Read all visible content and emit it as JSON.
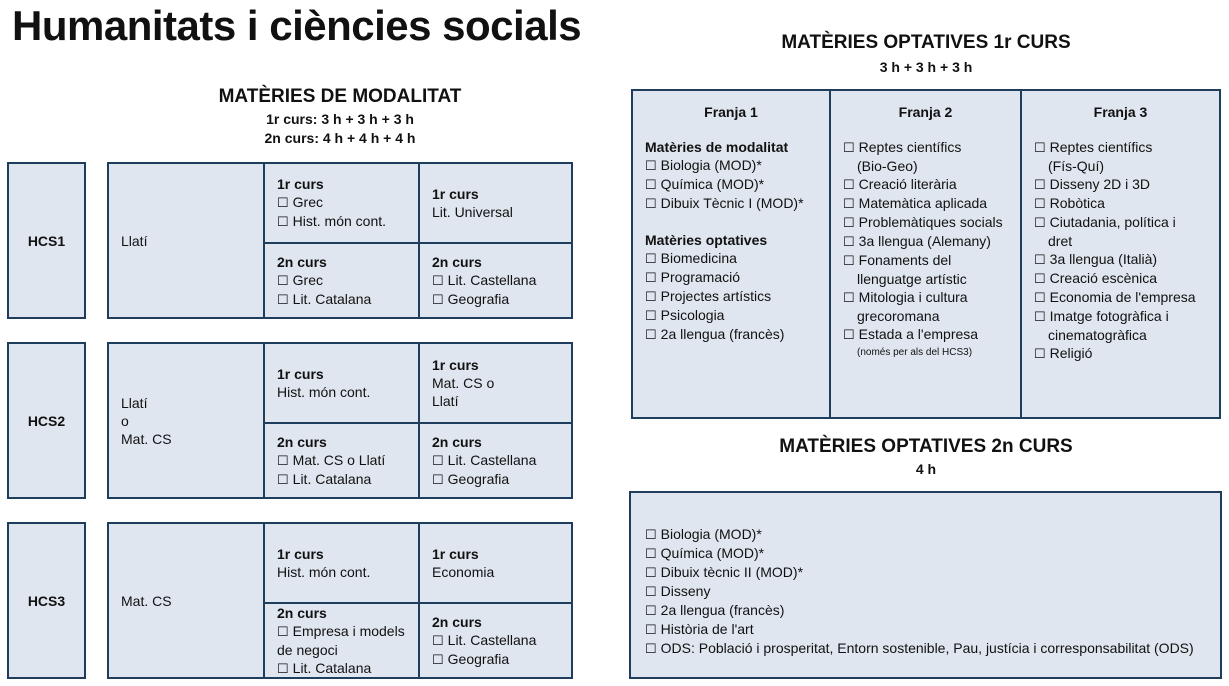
{
  "title": "Humanitats i ciències socials",
  "modalitat": {
    "heading": "MATÈRIES DE MODALITAT",
    "hours1": "1r curs: 3 h + 3 h + 3 h",
    "hours2": "2n curs: 4 h + 4 h + 4 h",
    "groups": [
      {
        "label": "HCS1",
        "main": [
          "Llatí"
        ],
        "cells": [
          {
            "title": "1r curs",
            "items": [
              {
                "cb": true,
                "t": "Grec"
              },
              {
                "cb": true,
                "t": "Hist. món cont."
              }
            ]
          },
          {
            "title": "1r curs",
            "items": [
              {
                "cb": false,
                "t": "Lit. Universal"
              }
            ]
          },
          {
            "title": "2n curs",
            "items": [
              {
                "cb": true,
                "t": "Grec"
              },
              {
                "cb": true,
                "t": "Lit. Catalana"
              }
            ]
          },
          {
            "title": "2n curs",
            "items": [
              {
                "cb": true,
                "t": "Lit. Castellana"
              },
              {
                "cb": true,
                "t": "Geografia"
              }
            ]
          }
        ]
      },
      {
        "label": "HCS2",
        "main": [
          "Llatí",
          "o",
          "Mat. CS"
        ],
        "cells": [
          {
            "title": "1r curs",
            "items": [
              {
                "cb": false,
                "t": "Hist. món cont."
              }
            ]
          },
          {
            "title": "1r curs",
            "items": [
              {
                "cb": false,
                "t": "Mat. CS o"
              },
              {
                "cb": false,
                "t": "Llatí"
              }
            ]
          },
          {
            "title": "2n curs",
            "items": [
              {
                "cb": true,
                "t": "Mat. CS o Llatí"
              },
              {
                "cb": true,
                "t": "Lit. Catalana"
              }
            ]
          },
          {
            "title": "2n curs",
            "items": [
              {
                "cb": true,
                "t": "Lit. Castellana"
              },
              {
                "cb": true,
                "t": "Geografia"
              }
            ]
          }
        ]
      },
      {
        "label": "HCS3",
        "main": [
          "Mat. CS"
        ],
        "cells": [
          {
            "title": "1r curs",
            "items": [
              {
                "cb": false,
                "t": "Hist. món cont."
              }
            ]
          },
          {
            "title": "1r curs",
            "items": [
              {
                "cb": false,
                "t": "Economia"
              }
            ]
          },
          {
            "title": "2n curs",
            "items": [
              {
                "cb": true,
                "t": "Empresa i models"
              },
              {
                "cb": false,
                "t": "de negoci"
              },
              {
                "cb": true,
                "t": "Lit. Catalana"
              }
            ]
          },
          {
            "title": "2n curs",
            "items": [
              {
                "cb": true,
                "t": "Lit. Castellana"
              },
              {
                "cb": true,
                "t": "Geografia"
              }
            ]
          }
        ]
      }
    ]
  },
  "optatives1": {
    "heading": "MATÈRIES OPTATIVES 1r CURS",
    "hours": "3 h + 3 h + 3 h",
    "franges": [
      {
        "title": "Franja 1",
        "lines": [
          {
            "type": "sub",
            "t": "Matèries de modalitat"
          },
          {
            "type": "cb",
            "t": "Biologia (MOD)*"
          },
          {
            "type": "cb",
            "t": "Química (MOD)*"
          },
          {
            "type": "cb",
            "t": "Dibuix Tècnic I (MOD)*"
          },
          {
            "type": "gap",
            "t": ""
          },
          {
            "type": "sub",
            "t": "Matèries optatives"
          },
          {
            "type": "cb",
            "t": "Biomedicina"
          },
          {
            "type": "cb",
            "t": "Programació"
          },
          {
            "type": "cb",
            "t": "Projectes artístics"
          },
          {
            "type": "cb",
            "t": "Psicologia"
          },
          {
            "type": "cb",
            "t": "2a llengua (francès)"
          }
        ]
      },
      {
        "title": "Franja 2",
        "lines": [
          {
            "type": "cb",
            "t": "Reptes científics"
          },
          {
            "type": "cont",
            "t": "(Bio-Geo)"
          },
          {
            "type": "cb",
            "t": "Creació literària"
          },
          {
            "type": "cb",
            "t": "Matemàtica aplicada"
          },
          {
            "type": "cb",
            "t": "Problemàtiques socials"
          },
          {
            "type": "cb",
            "t": "3a llengua (Alemany)"
          },
          {
            "type": "cb",
            "t": "Fonaments del"
          },
          {
            "type": "cont",
            "t": "llenguatge artístic"
          },
          {
            "type": "cb",
            "t": "Mitologia i cultura"
          },
          {
            "type": "cont",
            "t": "grecoromana"
          },
          {
            "type": "cb",
            "t": "Estada a  l'empresa"
          },
          {
            "type": "note",
            "t": "(només per als del HCS3)"
          }
        ]
      },
      {
        "title": "Franja 3",
        "lines": [
          {
            "type": "cb",
            "t": "Reptes científics"
          },
          {
            "type": "cont",
            "t": "(Fís-Quí)"
          },
          {
            "type": "cb",
            "t": "Disseny 2D i 3D"
          },
          {
            "type": "cb",
            "t": "Robòtica"
          },
          {
            "type": "cb",
            "t": "Ciutadania, política i"
          },
          {
            "type": "cont",
            "t": " dret"
          },
          {
            "type": "cb",
            "t": "3a llengua (Italià)"
          },
          {
            "type": "cb",
            "t": "Creació escènica"
          },
          {
            "type": "cb",
            "t": "Economia de l'empresa"
          },
          {
            "type": "cb",
            "t": "Imatge fotogràfica i"
          },
          {
            "type": "cont",
            "t": "cinematogràfica"
          },
          {
            "type": "cb",
            "t": "Religió"
          }
        ]
      }
    ]
  },
  "optatives2": {
    "heading": "MATÈRIES OPTATIVES 2n CURS",
    "hours": "4 h",
    "items": [
      "Biologia (MOD)*",
      "Química (MOD)*",
      "Dibuix tècnic II (MOD)*",
      "Disseny",
      "2a llengua (francès)",
      "Història de l'art",
      "ODS: Població i prosperitat, Entorn sostenible, Pau, justícia i corresponsabilitat (ODS)"
    ]
  },
  "checkbox_glyph": "☐",
  "colors": {
    "fill": "#dfe6ef",
    "border": "#1f3d5c"
  }
}
